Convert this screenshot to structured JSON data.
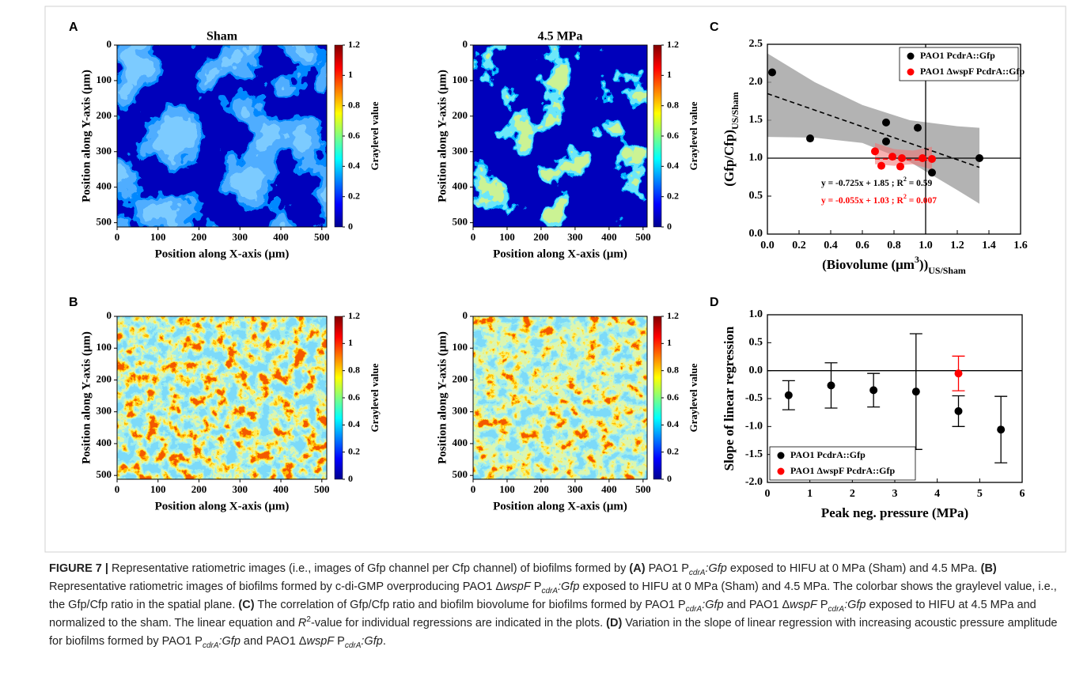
{
  "chart_data": [
    {
      "type": "heatmap",
      "panel_label": "A",
      "title": "Sham",
      "xlabel": "Position along X-axis (μm)",
      "ylabel": "Position along Y-axis (μm)",
      "xlim": [
        0,
        512
      ],
      "ylim": [
        0,
        512
      ],
      "y_inverted": true,
      "xticks": [
        0,
        100,
        200,
        300,
        400,
        500
      ],
      "yticks": [
        0,
        100,
        200,
        300,
        400,
        500
      ],
      "colorbar": {
        "label": "Graylevel value",
        "lim": [
          0,
          1.2
        ],
        "ticks": [
          0,
          0.2,
          0.4,
          0.6,
          0.8,
          1,
          1.2
        ]
      }
    },
    {
      "type": "heatmap",
      "title": "4.5 MPa",
      "xlabel": "Position along X-axis (μm)",
      "ylabel": "Position along Y-axis (μm)",
      "xlim": [
        0,
        512
      ],
      "ylim": [
        0,
        512
      ],
      "y_inverted": true,
      "xticks": [
        0,
        100,
        200,
        300,
        400,
        500
      ],
      "yticks": [
        0,
        100,
        200,
        300,
        400,
        500
      ],
      "colorbar": {
        "label": "Graylevel value",
        "lim": [
          0,
          1.2
        ],
        "ticks": [
          0,
          0.2,
          0.4,
          0.6,
          0.8,
          1,
          1.2
        ]
      }
    },
    {
      "type": "heatmap",
      "panel_label": "B",
      "xlabel": "Position along X-axis (μm)",
      "ylabel": "Position along Y-axis (μm)",
      "xlim": [
        0,
        512
      ],
      "ylim": [
        0,
        512
      ],
      "y_inverted": true,
      "xticks": [
        0,
        100,
        200,
        300,
        400,
        500
      ],
      "yticks": [
        0,
        100,
        200,
        300,
        400,
        500
      ],
      "colorbar": {
        "label": "Graylevel value",
        "lim": [
          0,
          1.2
        ],
        "ticks": [
          0,
          0.2,
          0.4,
          0.6,
          0.8,
          1,
          1.2
        ]
      }
    },
    {
      "type": "heatmap",
      "xlabel": "Position along X-axis (μm)",
      "ylabel": "Position along Y-axis (μm)",
      "xlim": [
        0,
        512
      ],
      "ylim": [
        0,
        512
      ],
      "y_inverted": true,
      "xticks": [
        0,
        100,
        200,
        300,
        400,
        500
      ],
      "yticks": [
        0,
        100,
        200,
        300,
        400,
        500
      ],
      "colorbar": {
        "label": "Graylevel value",
        "lim": [
          0,
          1.2
        ],
        "ticks": [
          0,
          0.2,
          0.4,
          0.6,
          0.8,
          1,
          1.2
        ]
      }
    },
    {
      "type": "scatter",
      "panel_label": "C",
      "xlabel": [
        {
          "text": "(Biovolume (μm"
        },
        {
          "text": "3",
          "style": "sup"
        },
        {
          "text": "))"
        },
        {
          "text": "US/Sham",
          "style": "sub"
        }
      ],
      "ylabel": [
        {
          "text": "(Gfp/Cfp)"
        },
        {
          "text": "US/Sham",
          "style": "sub"
        }
      ],
      "xlim": [
        0,
        1.6
      ],
      "ylim": [
        0,
        2.5
      ],
      "xticks": [
        {
          "value": 0,
          "label": "0.0"
        },
        0.2,
        0.4,
        0.6,
        0.8,
        {
          "value": 1,
          "label": "1.0"
        },
        1.2,
        1.4,
        1.6
      ],
      "yticks": [
        {
          "value": 0,
          "label": "0.0"
        },
        0.5,
        {
          "value": 1,
          "label": "1.0"
        },
        1.5,
        {
          "value": 2,
          "label": "2.0"
        },
        2.5
      ],
      "reference_lines": {
        "x": 1,
        "y": 1
      },
      "legend": "upper right",
      "series": [
        {
          "name": "PAO1 PcdrA::Gfp",
          "color": "#000000",
          "x": [
            0.03,
            0.27,
            0.75,
            0.75,
            0.95,
            1.04,
            1.34
          ],
          "values": [
            2.13,
            1.26,
            1.47,
            1.22,
            1.4,
            0.81,
            1.0
          ],
          "fit": {
            "slope": -0.725,
            "intercept": 1.85,
            "label": [
              {
                "text": "y = -0.725x + 1.85 ; R"
              },
              {
                "text": "2",
                "style": "sup"
              },
              {
                "text": " = 0.59"
              }
            ]
          },
          "confidence_band": {
            "x": [
              0,
              0.3,
              0.6,
              0.9,
              1.2,
              1.34
            ],
            "lower": [
              1.28,
              1.27,
              1.2,
              0.95,
              0.58,
              0.4
            ],
            "upper": [
              2.38,
              2.0,
              1.7,
              1.5,
              1.42,
              1.4
            ]
          }
        },
        {
          "name": "PAO1 ΔwspF PcdrA::Gfp",
          "color": "#ff0000",
          "x": [
            0.68,
            0.72,
            0.79,
            0.84,
            0.85,
            0.98,
            1.04
          ],
          "values": [
            1.09,
            0.9,
            1.02,
            0.89,
            1.0,
            1.0,
            0.99
          ],
          "fit": {
            "slope": -0.055,
            "intercept": 1.03,
            "label": [
              {
                "text": "y = -0.055x + 1.03 ; R"
              },
              {
                "text": "2",
                "style": "sup"
              },
              {
                "text": " = 0.007"
              }
            ]
          },
          "confidence_band": {
            "x": [
              0.68,
              0.8,
              0.92,
              1.04
            ],
            "lower": [
              0.92,
              0.9,
              0.92,
              0.85
            ],
            "upper": [
              1.2,
              1.12,
              1.1,
              1.15
            ]
          }
        }
      ]
    },
    {
      "type": "errorbar",
      "panel_label": "D",
      "xlabel": "Peak neg. pressure (MPa)",
      "ylabel": "Slope of linear regression",
      "xlim": [
        0,
        6
      ],
      "ylim": [
        -2,
        1
      ],
      "xticks": [
        0,
        1,
        2,
        3,
        4,
        5,
        6
      ],
      "yticks": [
        {
          "value": -2,
          "label": "-2.0"
        },
        -1.5,
        {
          "value": -1,
          "label": "-1.0"
        },
        -0.5,
        {
          "value": 0,
          "label": "0.0"
        },
        0.5,
        {
          "value": 1,
          "label": "1.0"
        }
      ],
      "reference_lines": {
        "y": 0
      },
      "legend": "lower left",
      "series": [
        {
          "name": "PAO1 PcdrA::Gfp",
          "color": "#000000",
          "x": [
            0.5,
            1.5,
            2.5,
            3.5,
            4.5,
            5.5
          ],
          "values": [
            -0.44,
            -0.265,
            -0.35,
            -0.375,
            -0.725,
            -1.055
          ],
          "errors": [
            0.26,
            0.405,
            0.3,
            1.035,
            0.275,
            0.595
          ]
        },
        {
          "name": "PAO1 ΔwspF PcdrA::Gfp",
          "color": "#ff0000",
          "x": [
            4.5
          ],
          "values": [
            -0.05
          ],
          "errors": [
            0.31
          ]
        }
      ]
    }
  ],
  "caption": [
    {
      "text": "FIGURE 7 |",
      "style": "bold"
    },
    {
      "text": " Representative ratiometric images (i.e., images of Gfp channel per Cfp channel) of biofilms formed by "
    },
    {
      "text": "(A)",
      "style": "bold"
    },
    {
      "text": " PAO1 P"
    },
    {
      "text": "cdrA",
      "style": "sub italic"
    },
    {
      "text": ":Gfp",
      "style": "italic"
    },
    {
      "text": " exposed to HIFU at 0 MPa (Sham) and 4.5 MPa. "
    },
    {
      "text": "(B)",
      "style": "bold"
    },
    {
      "text": " Representative ratiometric images of biofilms formed by c-di-GMP overproducing PAO1 Δ"
    },
    {
      "text": "wspF",
      "style": "italic"
    },
    {
      "text": " P"
    },
    {
      "text": "cdrA",
      "style": "sub italic"
    },
    {
      "text": ":Gfp",
      "style": "italic"
    },
    {
      "text": " exposed to HIFU at 0 MPa (Sham) and 4.5 MPa. The colorbar shows the graylevel value, i.e., the Gfp/Cfp ratio in the spatial plane. "
    },
    {
      "text": "(C)",
      "style": "bold"
    },
    {
      "text": " The correlation of Gfp/Cfp ratio and biofilm biovolume for biofilms formed by PAO1 P"
    },
    {
      "text": "cdrA",
      "style": "sub italic"
    },
    {
      "text": ":Gfp",
      "style": "italic"
    },
    {
      "text": " and PAO1 Δ"
    },
    {
      "text": "wspF",
      "style": "italic"
    },
    {
      "text": " P"
    },
    {
      "text": "cdrA",
      "style": "sub italic"
    },
    {
      "text": ":Gfp",
      "style": "italic"
    },
    {
      "text": " exposed to HIFU at 4.5 MPa and normalized to the sham. The linear equation and "
    },
    {
      "text": "R",
      "style": "italic"
    },
    {
      "text": "2",
      "style": "sup"
    },
    {
      "text": "-value for individual regressions are indicated in the plots. "
    },
    {
      "text": "(D)",
      "style": "bold"
    },
    {
      "text": " Variation in the slope of linear regression with increasing acoustic pressure amplitude for biofilms formed by PAO1 P"
    },
    {
      "text": "cdrA",
      "style": "sub italic"
    },
    {
      "text": ":Gfp",
      "style": "italic"
    },
    {
      "text": " and PAO1 Δ"
    },
    {
      "text": "wspF",
      "style": "italic"
    },
    {
      "text": " P"
    },
    {
      "text": "cdrA",
      "style": "sub italic"
    },
    {
      "text": ":Gfp",
      "style": "italic"
    },
    {
      "text": "."
    }
  ]
}
